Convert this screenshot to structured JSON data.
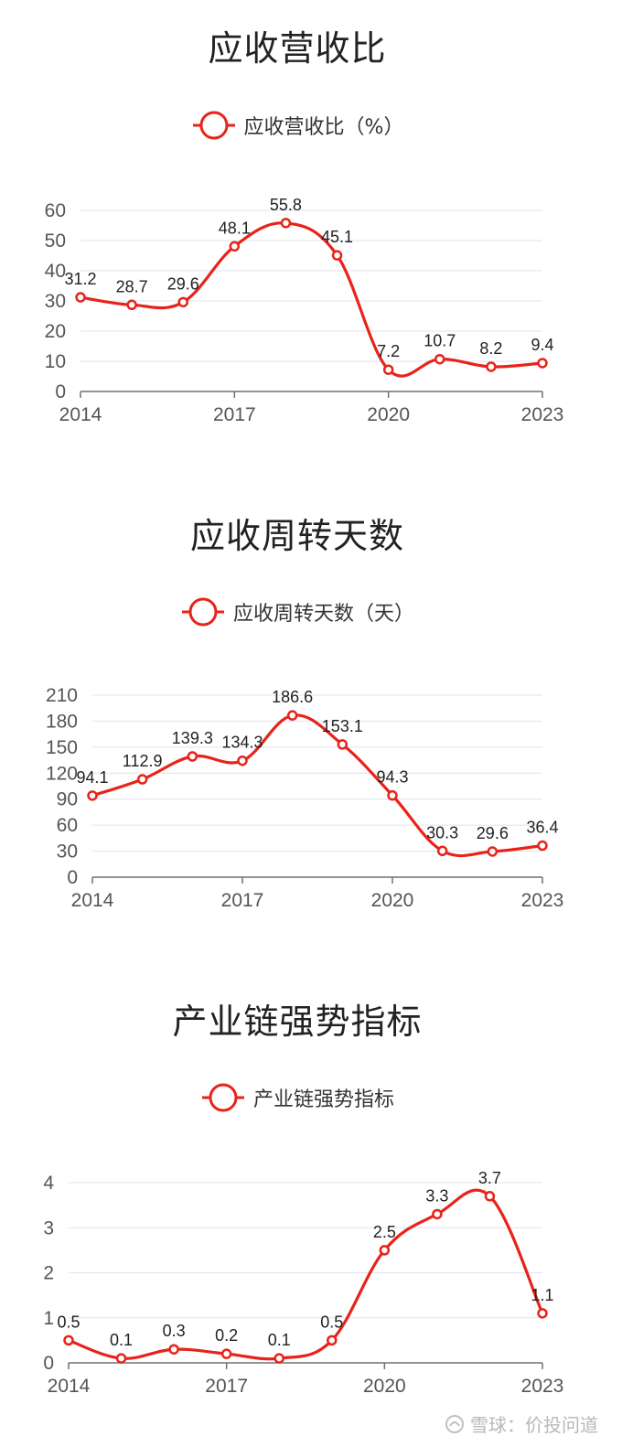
{
  "chart_data": [
    {
      "type": "line",
      "title": "应收营收比",
      "x": [
        "2014",
        "2015",
        "2016",
        "2017",
        "2018",
        "2019",
        "2020",
        "2021",
        "2022",
        "2023"
      ],
      "x_tick_labels": [
        "2014",
        "2017",
        "2020",
        "2023"
      ],
      "series": [
        {
          "name": "应收营收比（%）",
          "values": [
            31.2,
            28.7,
            29.6,
            48.1,
            55.8,
            45.1,
            7.2,
            10.7,
            8.2,
            9.4
          ]
        }
      ],
      "ylim": [
        0,
        60
      ],
      "y_ticks": [
        0,
        10,
        20,
        30,
        40,
        50,
        60
      ],
      "grid": true,
      "legend": "top-center",
      "color": "#e8231a"
    },
    {
      "type": "line",
      "title": "应收周转天数",
      "x": [
        "2014",
        "2015",
        "2016",
        "2017",
        "2018",
        "2019",
        "2020",
        "2021",
        "2022",
        "2023"
      ],
      "x_tick_labels": [
        "2014",
        "2017",
        "2020",
        "2023"
      ],
      "series": [
        {
          "name": "应收周转天数（天）",
          "values": [
            94.1,
            112.9,
            139.3,
            134.3,
            186.6,
            153.1,
            94.3,
            30.3,
            29.6,
            36.4
          ]
        }
      ],
      "ylim": [
        0,
        210
      ],
      "y_ticks": [
        0,
        30,
        60,
        90,
        120,
        150,
        180,
        210
      ],
      "grid": true,
      "legend": "top-center",
      "color": "#e8231a"
    },
    {
      "type": "line",
      "title": "产业链强势指标",
      "x": [
        "2014",
        "2015",
        "2016",
        "2017",
        "2018",
        "2019",
        "2020",
        "2021",
        "2022",
        "2023"
      ],
      "x_tick_labels": [
        "2014",
        "2017",
        "2020",
        "2023"
      ],
      "series": [
        {
          "name": "产业链强势指标",
          "values": [
            0.5,
            0.1,
            0.3,
            0.2,
            0.1,
            0.5,
            2.5,
            3.3,
            3.7,
            1.1
          ]
        }
      ],
      "ylim": [
        0,
        4
      ],
      "y_ticks": [
        0,
        1,
        2,
        3,
        4
      ],
      "grid": true,
      "legend": "top-center",
      "color": "#e8231a"
    }
  ],
  "watermark": {
    "text": "雪球：价投问道",
    "icon": "snowball-logo-icon"
  }
}
